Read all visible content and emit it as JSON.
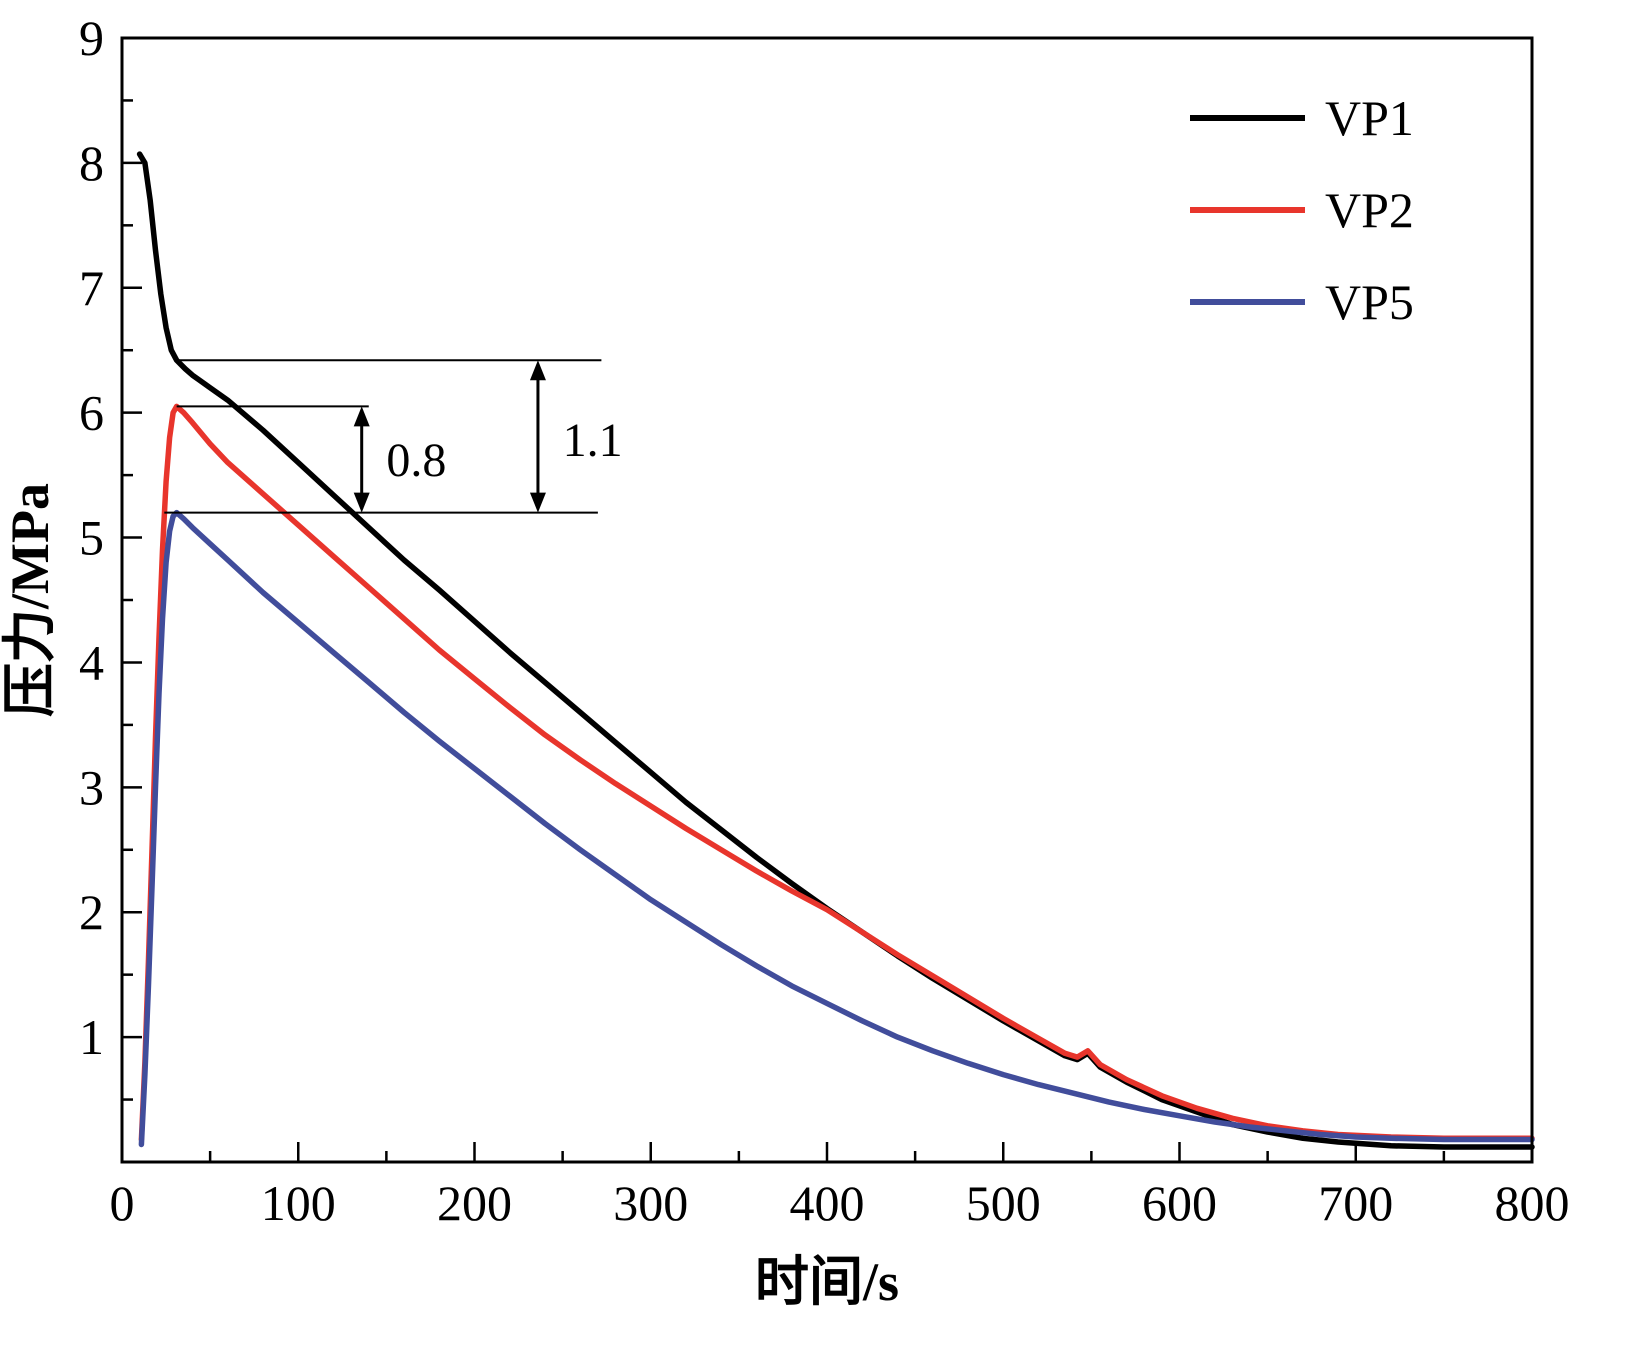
{
  "figure": {
    "background": "#ffffff",
    "frame_color": "#000000"
  },
  "chart_data": {
    "type": "line",
    "title": "",
    "xlabel": "时间/s",
    "ylabel": "压力/MPa",
    "xlim": [
      0,
      800
    ],
    "ylim": [
      0,
      9
    ],
    "xticks": [
      0,
      100,
      200,
      300,
      400,
      500,
      600,
      700,
      800
    ],
    "yticks": [
      1,
      2,
      3,
      4,
      5,
      6,
      7,
      8,
      9
    ],
    "x_minor_step": 50,
    "y_minor_step": 0.5,
    "grid": false,
    "legend": {
      "position": "top-right",
      "entries": [
        {
          "label": "VP1",
          "color": "#000000"
        },
        {
          "label": "VP2",
          "color": "#e8352c"
        },
        {
          "label": "VP5",
          "color": "#414d9b"
        }
      ]
    },
    "series": [
      {
        "name": "VP1",
        "color": "#000000",
        "width": 5.5,
        "points": [
          [
            10,
            8.07
          ],
          [
            13,
            8.0
          ],
          [
            16,
            7.7
          ],
          [
            19,
            7.3
          ],
          [
            22,
            6.95
          ],
          [
            25,
            6.68
          ],
          [
            28,
            6.5
          ],
          [
            31,
            6.42
          ],
          [
            36,
            6.35
          ],
          [
            40,
            6.3
          ],
          [
            50,
            6.2
          ],
          [
            60,
            6.1
          ],
          [
            80,
            5.86
          ],
          [
            100,
            5.6
          ],
          [
            120,
            5.34
          ],
          [
            140,
            5.08
          ],
          [
            160,
            4.82
          ],
          [
            180,
            4.58
          ],
          [
            200,
            4.33
          ],
          [
            220,
            4.08
          ],
          [
            240,
            3.84
          ],
          [
            260,
            3.6
          ],
          [
            280,
            3.36
          ],
          [
            300,
            3.12
          ],
          [
            320,
            2.88
          ],
          [
            340,
            2.66
          ],
          [
            360,
            2.44
          ],
          [
            380,
            2.23
          ],
          [
            400,
            2.03
          ],
          [
            420,
            1.84
          ],
          [
            440,
            1.65
          ],
          [
            460,
            1.47
          ],
          [
            480,
            1.3
          ],
          [
            500,
            1.13
          ],
          [
            520,
            0.97
          ],
          [
            535,
            0.85
          ],
          [
            542,
            0.82
          ],
          [
            548,
            0.87
          ],
          [
            555,
            0.76
          ],
          [
            570,
            0.64
          ],
          [
            590,
            0.5
          ],
          [
            610,
            0.4
          ],
          [
            630,
            0.3
          ],
          [
            650,
            0.24
          ],
          [
            670,
            0.19
          ],
          [
            690,
            0.16
          ],
          [
            720,
            0.13
          ],
          [
            750,
            0.12
          ],
          [
            800,
            0.12
          ]
        ]
      },
      {
        "name": "VP2",
        "color": "#e8352c",
        "width": 5.5,
        "points": [
          [
            11,
            0.18
          ],
          [
            13,
            0.8
          ],
          [
            15,
            1.6
          ],
          [
            17,
            2.5
          ],
          [
            19,
            3.4
          ],
          [
            21,
            4.2
          ],
          [
            23,
            4.9
          ],
          [
            25,
            5.45
          ],
          [
            27,
            5.8
          ],
          [
            29,
            6.0
          ],
          [
            31,
            6.05
          ],
          [
            35,
            6.0
          ],
          [
            40,
            5.92
          ],
          [
            50,
            5.75
          ],
          [
            60,
            5.6
          ],
          [
            80,
            5.35
          ],
          [
            100,
            5.1
          ],
          [
            120,
            4.85
          ],
          [
            140,
            4.6
          ],
          [
            160,
            4.35
          ],
          [
            180,
            4.1
          ],
          [
            200,
            3.87
          ],
          [
            220,
            3.64
          ],
          [
            240,
            3.42
          ],
          [
            260,
            3.22
          ],
          [
            280,
            3.03
          ],
          [
            300,
            2.85
          ],
          [
            320,
            2.67
          ],
          [
            340,
            2.5
          ],
          [
            360,
            2.33
          ],
          [
            380,
            2.17
          ],
          [
            400,
            2.02
          ],
          [
            420,
            1.84
          ],
          [
            440,
            1.66
          ],
          [
            460,
            1.49
          ],
          [
            480,
            1.32
          ],
          [
            500,
            1.15
          ],
          [
            520,
            0.99
          ],
          [
            535,
            0.87
          ],
          [
            542,
            0.84
          ],
          [
            548,
            0.89
          ],
          [
            555,
            0.78
          ],
          [
            570,
            0.66
          ],
          [
            590,
            0.53
          ],
          [
            610,
            0.43
          ],
          [
            630,
            0.35
          ],
          [
            650,
            0.29
          ],
          [
            670,
            0.25
          ],
          [
            690,
            0.22
          ],
          [
            720,
            0.2
          ],
          [
            750,
            0.19
          ],
          [
            800,
            0.19
          ]
        ]
      },
      {
        "name": "VP5",
        "color": "#414d9b",
        "width": 5.5,
        "points": [
          [
            11,
            0.14
          ],
          [
            13,
            0.7
          ],
          [
            15,
            1.4
          ],
          [
            17,
            2.2
          ],
          [
            19,
            3.0
          ],
          [
            21,
            3.75
          ],
          [
            23,
            4.35
          ],
          [
            25,
            4.8
          ],
          [
            27,
            5.05
          ],
          [
            29,
            5.17
          ],
          [
            31,
            5.2
          ],
          [
            35,
            5.15
          ],
          [
            40,
            5.08
          ],
          [
            50,
            4.95
          ],
          [
            60,
            4.82
          ],
          [
            80,
            4.56
          ],
          [
            100,
            4.32
          ],
          [
            120,
            4.08
          ],
          [
            140,
            3.84
          ],
          [
            160,
            3.6
          ],
          [
            180,
            3.37
          ],
          [
            200,
            3.15
          ],
          [
            220,
            2.93
          ],
          [
            240,
            2.71
          ],
          [
            260,
            2.5
          ],
          [
            280,
            2.3
          ],
          [
            300,
            2.1
          ],
          [
            320,
            1.92
          ],
          [
            340,
            1.74
          ],
          [
            360,
            1.57
          ],
          [
            380,
            1.41
          ],
          [
            400,
            1.27
          ],
          [
            420,
            1.13
          ],
          [
            440,
            1.0
          ],
          [
            460,
            0.89
          ],
          [
            480,
            0.79
          ],
          [
            500,
            0.7
          ],
          [
            520,
            0.62
          ],
          [
            540,
            0.55
          ],
          [
            560,
            0.48
          ],
          [
            580,
            0.42
          ],
          [
            600,
            0.37
          ],
          [
            620,
            0.32
          ],
          [
            640,
            0.28
          ],
          [
            660,
            0.25
          ],
          [
            680,
            0.22
          ],
          [
            700,
            0.2
          ],
          [
            720,
            0.19
          ],
          [
            750,
            0.18
          ],
          [
            800,
            0.18
          ]
        ]
      }
    ],
    "annotations": {
      "ref_lines": [
        {
          "y": 6.42,
          "x1": 31,
          "x2": 272
        },
        {
          "y": 6.05,
          "x1": 31,
          "x2": 140
        },
        {
          "y": 5.2,
          "x1": 24,
          "x2": 270
        }
      ],
      "arrows": [
        {
          "x": 136,
          "y1": 6.05,
          "y2": 5.2,
          "label": "0.8",
          "label_x": 150,
          "label_y": 5.62,
          "label_color": "#e8352c"
        },
        {
          "x": 236,
          "y1": 6.42,
          "y2": 5.2,
          "label": "1.1",
          "label_x": 250,
          "label_y": 5.78,
          "label_color": "#e8352c"
        }
      ]
    }
  }
}
